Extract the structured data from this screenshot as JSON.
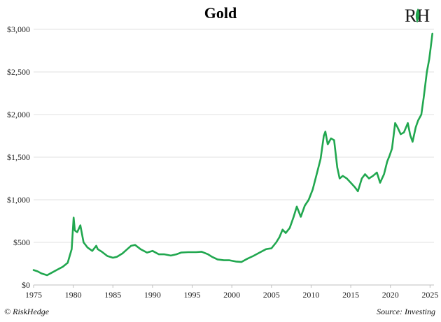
{
  "chart_data": {
    "type": "line",
    "title": "Gold",
    "xlabel": "",
    "ylabel": "",
    "xlim": [
      1975,
      2025.5
    ],
    "ylim": [
      0,
      3000
    ],
    "x_ticks": [
      1975,
      1980,
      1985,
      1990,
      1995,
      2000,
      2005,
      2010,
      2015,
      2020,
      2025
    ],
    "x_tick_labels": [
      "1975",
      "1980",
      "1985",
      "1990",
      "1995",
      "2000",
      "2005",
      "2010",
      "2015",
      "2020",
      "2025"
    ],
    "y_ticks": [
      0,
      500,
      1000,
      1500,
      2000,
      2500,
      3000
    ],
    "y_tick_labels": [
      "$0",
      "$500",
      "$1,000",
      "$1,500",
      "$2,000",
      "$2,500",
      "$3,000"
    ],
    "grid": true,
    "line_color": "#21a74f",
    "series": [
      {
        "x": [
          1975.0,
          1975.5,
          1976.0,
          1976.7,
          1977.3,
          1978.0,
          1978.7,
          1979.3,
          1979.8,
          1980.05,
          1980.2,
          1980.5,
          1980.9,
          1981.3,
          1981.8,
          1982.4,
          1982.9,
          1983.1,
          1983.6,
          1984.3,
          1985.0,
          1985.5,
          1986.2,
          1986.8,
          1987.3,
          1987.8,
          1988.5,
          1989.3,
          1990.0,
          1990.8,
          1991.5,
          1992.3,
          1993.0,
          1993.6,
          1994.5,
          1995.5,
          1996.2,
          1997.0,
          1997.5,
          1998.2,
          1999.0,
          1999.7,
          2000.5,
          2001.2,
          2002.0,
          2002.7,
          2003.5,
          2004.3,
          2005.0,
          2005.6,
          2006.0,
          2006.4,
          2006.8,
          2007.3,
          2007.8,
          2008.2,
          2008.7,
          2009.2,
          2009.7,
          2010.2,
          2010.7,
          2011.2,
          2011.6,
          2011.8,
          2012.1,
          2012.5,
          2012.9,
          2013.3,
          2013.6,
          2014.0,
          2014.5,
          2015.0,
          2015.5,
          2015.9,
          2016.4,
          2016.8,
          2017.3,
          2017.8,
          2018.3,
          2018.7,
          2019.2,
          2019.6,
          2019.9,
          2020.2,
          2020.6,
          2020.9,
          2021.3,
          2021.7,
          2022.2,
          2022.5,
          2022.8,
          2023.2,
          2023.5,
          2023.9,
          2024.2,
          2024.6,
          2024.9,
          2025.1,
          2025.3
        ],
        "values": [
          175,
          160,
          135,
          115,
          145,
          180,
          215,
          260,
          420,
          790,
          640,
          620,
          700,
          500,
          440,
          400,
          460,
          420,
          390,
          340,
          320,
          330,
          370,
          420,
          460,
          470,
          420,
          380,
          400,
          360,
          360,
          345,
          360,
          380,
          385,
          385,
          390,
          360,
          330,
          300,
          290,
          290,
          275,
          270,
          310,
          340,
          380,
          420,
          430,
          500,
          560,
          650,
          610,
          670,
          800,
          920,
          800,
          930,
          1000,
          1120,
          1300,
          1480,
          1750,
          1800,
          1650,
          1720,
          1700,
          1380,
          1250,
          1280,
          1250,
          1200,
          1150,
          1100,
          1250,
          1300,
          1250,
          1280,
          1320,
          1200,
          1300,
          1450,
          1520,
          1600,
          1900,
          1850,
          1770,
          1790,
          1900,
          1760,
          1680,
          1850,
          1930,
          2000,
          2200,
          2500,
          2650,
          2800,
          2950
        ]
      }
    ]
  },
  "logo": {
    "text": "RH",
    "accent_color": "#21a74f"
  },
  "footer": {
    "left": "© RiskHedge",
    "right": "Source: Investing"
  }
}
